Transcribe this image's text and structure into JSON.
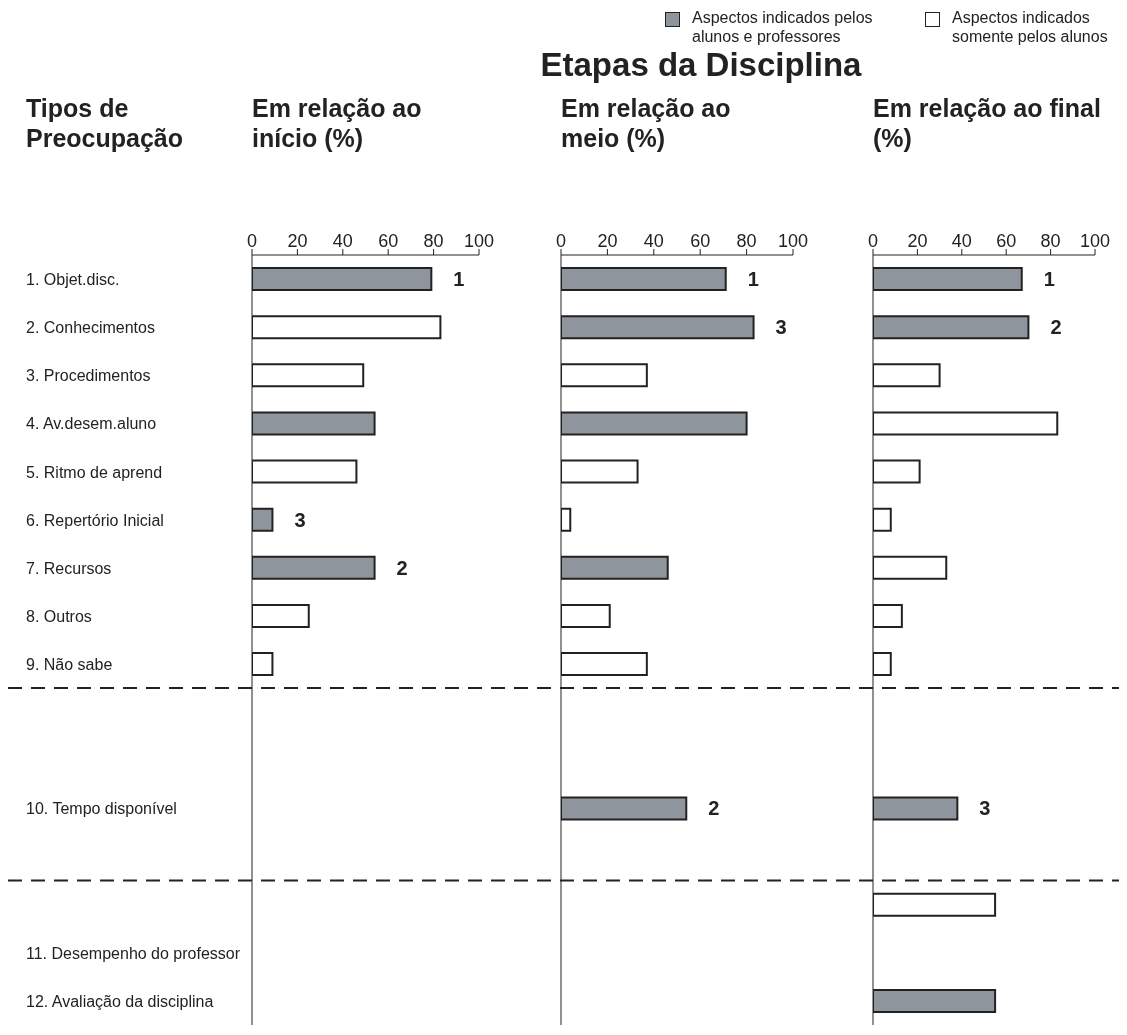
{
  "chart_data": [
    {
      "type": "bar",
      "orientation": "horizontal",
      "stacked": true,
      "ylabel": "Tipos de Preocupação",
      "xlabel": "Em relação ao início (%)",
      "categories": [
        "1. Objet.disc.",
        "2. Conhecimentos",
        "3. Procedimentos",
        "4. Av.desem.aluno",
        "5. Ritmo de aprend",
        "6. Repertório Inicial",
        "7. Recursos",
        "8. Outros",
        "9. Não sabe",
        null,
        null,
        "10. Tempo disponível",
        null,
        null,
        "11. Desempenho do professor",
        "12. Avaliação da disciplina"
      ],
      "xlim": [
        0,
        100
      ],
      "xticks": [
        0,
        20,
        40,
        60,
        80,
        100
      ],
      "series": [
        {
          "color": "#8f959c",
          "values": [
            79,
            null,
            null,
            54,
            null,
            9,
            54,
            null,
            null,
            null,
            null,
            null,
            null,
            null,
            null,
            null
          ]
        },
        {
          "color": "#ffffff",
          "values": [
            null,
            83,
            49,
            null,
            46,
            null,
            null,
            25,
            9,
            null,
            null,
            null,
            null,
            null,
            null,
            null
          ]
        }
      ],
      "annotations": [
        {
          "text": "1",
          "x": 79,
          "y": "1. Objet.disc."
        },
        {
          "text": "3",
          "x": 9,
          "y": "6. Repertório Inicial"
        },
        {
          "text": "2",
          "x": 54,
          "y": "7. Recursos"
        }
      ]
    },
    {
      "type": "bar",
      "orientation": "horizontal",
      "stacked": true,
      "title": "Etapas da Disciplina",
      "xlabel": "Em relação ao meio (%)",
      "tick_labels": "x",
      "categories": [
        "1. Objet.disc.",
        "2. Conhecimentos",
        "3. Procedimentos",
        "4. Av.desem.aluno",
        "5. Ritmo de aprend",
        "6. Repertório Inicial",
        "7. Recursos",
        "8. Outros",
        "9. Não sabe",
        null,
        null,
        "10. Tempo disponível",
        null,
        null,
        "11. Desempenho do professor",
        "12. Avaliação da disciplina"
      ],
      "xlim": [
        0,
        100
      ],
      "xticks": [
        0,
        20,
        40,
        60,
        80,
        100
      ],
      "series": [
        {
          "color": "#8f959c",
          "values": [
            71,
            83,
            null,
            80,
            null,
            null,
            46,
            null,
            null,
            null,
            null,
            54,
            null,
            null,
            null,
            null
          ]
        },
        {
          "color": "#ffffff",
          "values": [
            null,
            null,
            37,
            null,
            33,
            4,
            null,
            21,
            37,
            null,
            null,
            null,
            null,
            null,
            null,
            null
          ]
        }
      ],
      "annotations": [
        {
          "text": "1",
          "x": 71,
          "y": "1. Objet.disc."
        },
        {
          "text": "3",
          "x": 83,
          "y": "2. Conhecimentos"
        },
        {
          "text": "2",
          "x": 54,
          "y": "10. Tempo disponível"
        }
      ]
    },
    {
      "type": "bar",
      "orientation": "horizontal",
      "stacked": true,
      "xlabel": "Em relação ao final (%)",
      "tick_labels": "x",
      "legend": "top left",
      "categories": [
        "1. Objet.disc.",
        "2. Conhecimentos",
        "3. Procedimentos",
        "4. Av.desem.aluno",
        "5. Ritmo de aprend",
        "6. Repertório Inicial",
        "7. Recursos",
        "8. Outros",
        "9. Não sabe",
        null,
        null,
        "10. Tempo disponível",
        null,
        null,
        "11. Desempenho do professor",
        "12. Avaliação da disciplina"
      ],
      "xlim": [
        0,
        100
      ],
      "xticks": [
        0,
        20,
        40,
        60,
        80,
        100
      ],
      "series": [
        {
          "name": "Aspectos indicados pelos alunos e professores",
          "color": "#8f959c",
          "values": [
            67,
            70,
            null,
            null,
            null,
            null,
            null,
            null,
            null,
            null,
            null,
            38,
            null,
            null,
            null,
            55
          ]
        },
        {
          "name": "Aspectos indicados somente pelos alunos",
          "color": "#ffffff",
          "values": [
            null,
            null,
            30,
            83,
            21,
            8,
            33,
            13,
            8,
            null,
            null,
            null,
            null,
            55,
            null,
            null
          ]
        }
      ],
      "annotations": [
        {
          "text": "1",
          "x": 67,
          "y": "1. Objet.disc."
        },
        {
          "text": "2",
          "x": 70,
          "y": "2. Conhecimentos"
        },
        {
          "text": "3",
          "x": 38,
          "y": "10. Tempo disponível"
        }
      ]
    }
  ]
}
